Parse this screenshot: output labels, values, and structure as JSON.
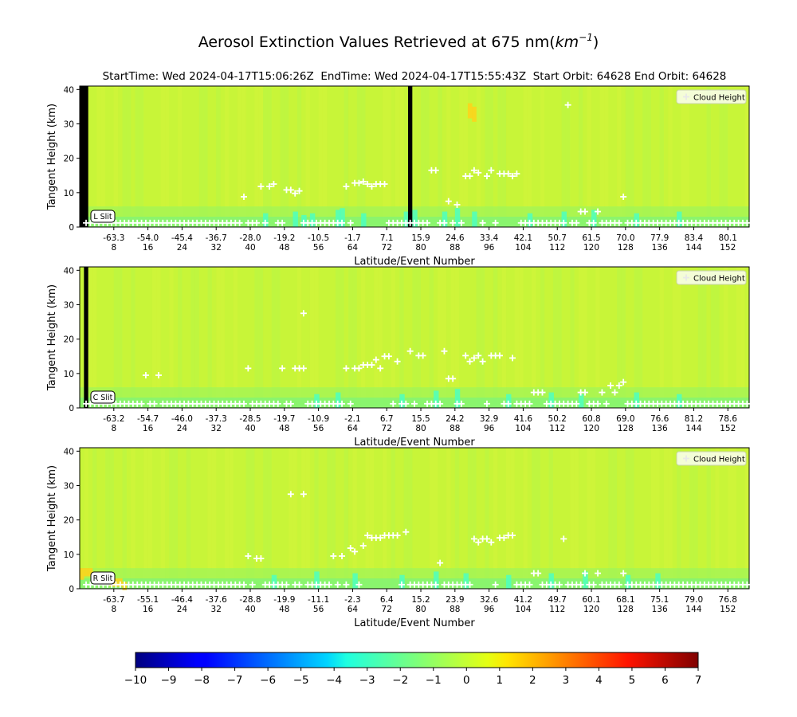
{
  "title_main": "Aerosol Extinction Values Retrieved at 675 nm(",
  "title_unit": "km",
  "title_exp": "−1",
  "title_close": ")",
  "subtitle": "StartTime: Wed 2024-04-17T15:06:26Z  EndTime: Wed 2024-04-17T15:55:43Z  Start Orbit: 64628 End Orbit: 64628",
  "colors": {
    "background_field": "#c8f538",
    "cloud_marker": "#ffffff",
    "data_gap": "#000000",
    "low_alt_cyan": "#4dffc0"
  },
  "chart_data": [
    {
      "type": "heatmap",
      "slit_label": "L Slit",
      "xlabel": "Latitude/Event Number",
      "ylabel": "Tangent Height (km)",
      "ylim": [
        0,
        41
      ],
      "yticks": [
        0,
        10,
        20,
        30,
        40
      ],
      "lat_ticks": [
        "-63.3",
        "-54.0",
        "-45.4",
        "-36.7",
        "-28.0",
        "-19.2",
        "-10.5",
        "-1.7",
        "7.1",
        "15.9",
        "24.6",
        "33.4",
        "42.1",
        "50.7",
        "61.5",
        "70.0",
        "77.9",
        "83.4",
        "80.1"
      ],
      "event_ticks": [
        "8",
        "16",
        "24",
        "32",
        "40",
        "48",
        "56",
        "64",
        "72",
        "80",
        "88",
        "96",
        "104",
        "112",
        "120",
        "128",
        "136",
        "144",
        "152"
      ],
      "event_range": [
        0,
        157
      ],
      "legend": {
        "label": "Cloud Height",
        "placement": "top-right"
      },
      "gaps": [
        [
          0,
          2
        ],
        [
          77,
          78
        ]
      ],
      "cloud_heights": [
        [
          22,
          1.2
        ],
        [
          38,
          8.8
        ],
        [
          40,
          1.2
        ],
        [
          42,
          11.8
        ],
        [
          44,
          11.8
        ],
        [
          45,
          12.5
        ],
        [
          47,
          1.2
        ],
        [
          48,
          10.8
        ],
        [
          49,
          10.8
        ],
        [
          50,
          9.8
        ],
        [
          51,
          10.5
        ],
        [
          56,
          1.2
        ],
        [
          61,
          1.2
        ],
        [
          62,
          11.8
        ],
        [
          64,
          12.8
        ],
        [
          65,
          12.8
        ],
        [
          66,
          13.2
        ],
        [
          67,
          12.5
        ],
        [
          68,
          11.8
        ],
        [
          69,
          12.5
        ],
        [
          70,
          12.5
        ],
        [
          71,
          12.5
        ],
        [
          80,
          1.2
        ],
        [
          82,
          16.5
        ],
        [
          83,
          16.5
        ],
        [
          84,
          1.2
        ],
        [
          85,
          1.2
        ],
        [
          86,
          7.5
        ],
        [
          88,
          6.5
        ],
        [
          89,
          1.2
        ],
        [
          90,
          14.8
        ],
        [
          91,
          14.8
        ],
        [
          92,
          16.5
        ],
        [
          93,
          15.8
        ],
        [
          94,
          1.2
        ],
        [
          95,
          14.8
        ],
        [
          96,
          16.5
        ],
        [
          98,
          15.5
        ],
        [
          99,
          15.5
        ],
        [
          100,
          15.5
        ],
        [
          101,
          14.8
        ],
        [
          102,
          15.5
        ],
        [
          107,
          1.2
        ],
        [
          114,
          35.5
        ],
        [
          115,
          1.2
        ],
        [
          117,
          4.5
        ],
        [
          118,
          4.5
        ],
        [
          121,
          4.5
        ],
        [
          122,
          1.2
        ],
        [
          127,
          8.8
        ]
      ],
      "cyan_events": [
        [
          43,
          4.0
        ],
        [
          50,
          4.5
        ],
        [
          52,
          3.5
        ],
        [
          54,
          4.0
        ],
        [
          60,
          5.0
        ],
        [
          61,
          5.5
        ],
        [
          66,
          4.0
        ],
        [
          76,
          4.5
        ],
        [
          78,
          5.0
        ],
        [
          85,
          4.5
        ],
        [
          88,
          5.5
        ],
        [
          92,
          4.5
        ],
        [
          105,
          4.0
        ],
        [
          113,
          4.5
        ],
        [
          120,
          5.0
        ],
        [
          130,
          4.0
        ],
        [
          140,
          4.5
        ]
      ],
      "warm_spots": [
        [
          91,
          36,
          33
        ],
        [
          92,
          35,
          32
        ]
      ]
    },
    {
      "type": "heatmap",
      "slit_label": "C Slit",
      "xlabel": "Latitude/Event Number",
      "ylabel": "Tangent Height (km)",
      "ylim": [
        0,
        41
      ],
      "yticks": [
        0,
        10,
        20,
        30,
        40
      ],
      "lat_ticks": [
        "-63.2",
        "-54.7",
        "-46.0",
        "-37.3",
        "-28.5",
        "-19.7",
        "-10.9",
        "-2.1",
        "6.7",
        "15.5",
        "24.2",
        "32.9",
        "41.6",
        "50.2",
        "60.8",
        "69.0",
        "76.6",
        "81.2",
        "78.6"
      ],
      "event_ticks": [
        "8",
        "16",
        "24",
        "32",
        "40",
        "48",
        "56",
        "64",
        "72",
        "80",
        "88",
        "96",
        "104",
        "112",
        "120",
        "128",
        "136",
        "144",
        "152"
      ],
      "event_range": [
        0,
        157
      ],
      "legend": {
        "label": "Cloud Height",
        "placement": "top-right"
      },
      "gaps": [
        [
          1,
          2
        ]
      ],
      "cloud_heights": [
        [
          15,
          9.5
        ],
        [
          18,
          9.5
        ],
        [
          39,
          11.5
        ],
        [
          45,
          1.2
        ],
        [
          46,
          1.2
        ],
        [
          47,
          11.5
        ],
        [
          49,
          1.2
        ],
        [
          50,
          11.5
        ],
        [
          51,
          11.5
        ],
        [
          52,
          11.5
        ],
        [
          52,
          27.5
        ],
        [
          62,
          11.5
        ],
        [
          64,
          11.5
        ],
        [
          65,
          11.5
        ],
        [
          66,
          12.5
        ],
        [
          67,
          12.5
        ],
        [
          68,
          12.5
        ],
        [
          69,
          14.0
        ],
        [
          70,
          11.5
        ],
        [
          71,
          15.0
        ],
        [
          72,
          15.0
        ],
        [
          74,
          13.5
        ],
        [
          77,
          16.5
        ],
        [
          79,
          15.2
        ],
        [
          80,
          15.2
        ],
        [
          85,
          16.5
        ],
        [
          86,
          8.5
        ],
        [
          87,
          8.5
        ],
        [
          90,
          15.2
        ],
        [
          91,
          13.5
        ],
        [
          92,
          14.5
        ],
        [
          93,
          15.2
        ],
        [
          94,
          13.5
        ],
        [
          96,
          15.2
        ],
        [
          97,
          15.2
        ],
        [
          98,
          15.2
        ],
        [
          101,
          14.5
        ],
        [
          106,
          4.5
        ],
        [
          107,
          4.5
        ],
        [
          108,
          4.5
        ],
        [
          117,
          4.5
        ],
        [
          118,
          4.5
        ],
        [
          122,
          4.5
        ],
        [
          124,
          6.5
        ],
        [
          125,
          4.5
        ],
        [
          126,
          6.5
        ],
        [
          127,
          7.5
        ]
      ],
      "cyan_events": [
        [
          55,
          4.0
        ],
        [
          60,
          4.5
        ],
        [
          75,
          4.0
        ],
        [
          83,
          5.0
        ],
        [
          88,
          5.5
        ],
        [
          100,
          4.0
        ],
        [
          110,
          4.5
        ],
        [
          117,
          4.0
        ],
        [
          130,
          4.5
        ],
        [
          140,
          4.0
        ]
      ],
      "warm_spots": []
    },
    {
      "type": "heatmap",
      "slit_label": "R Slit",
      "xlabel": "Latitude/Event Number",
      "ylabel": "Tangent Height (km)",
      "ylim": [
        0,
        41
      ],
      "yticks": [
        0,
        10,
        20,
        30,
        40
      ],
      "lat_ticks": [
        "-63.7",
        "-55.1",
        "-46.4",
        "-37.6",
        "-28.8",
        "-19.9",
        "-11.1",
        "-2.3",
        "6.4",
        "15.2",
        "23.9",
        "32.6",
        "41.2",
        "49.7",
        "60.1",
        "68.1",
        "75.1",
        "79.0",
        "76.8"
      ],
      "event_ticks": [
        "8",
        "16",
        "24",
        "32",
        "40",
        "48",
        "56",
        "64",
        "72",
        "80",
        "88",
        "96",
        "104",
        "112",
        "120",
        "128",
        "136",
        "144",
        "152"
      ],
      "event_range": [
        0,
        157
      ],
      "legend": {
        "label": "Cloud Height",
        "placement": "top-right"
      },
      "gaps": [],
      "cloud_heights": [
        [
          39,
          9.5
        ],
        [
          41,
          8.8
        ],
        [
          42,
          8.8
        ],
        [
          49,
          27.5
        ],
        [
          52,
          27.5
        ],
        [
          59,
          9.5
        ],
        [
          61,
          9.5
        ],
        [
          63,
          11.8
        ],
        [
          64,
          10.8
        ],
        [
          66,
          12.5
        ],
        [
          67,
          15.5
        ],
        [
          68,
          14.8
        ],
        [
          69,
          14.8
        ],
        [
          70,
          14.8
        ],
        [
          71,
          15.5
        ],
        [
          72,
          15.5
        ],
        [
          73,
          15.5
        ],
        [
          74,
          15.5
        ],
        [
          76,
          16.5
        ],
        [
          79,
          1.2
        ],
        [
          84,
          7.5
        ],
        [
          92,
          14.5
        ],
        [
          93,
          13.5
        ],
        [
          94,
          14.5
        ],
        [
          95,
          14.5
        ],
        [
          96,
          13.5
        ],
        [
          98,
          14.8
        ],
        [
          99,
          14.8
        ],
        [
          100,
          15.5
        ],
        [
          101,
          15.5
        ],
        [
          105,
          1.2
        ],
        [
          106,
          4.5
        ],
        [
          107,
          4.5
        ],
        [
          113,
          14.5
        ],
        [
          118,
          4.5
        ],
        [
          121,
          4.5
        ],
        [
          127,
          4.5
        ]
      ],
      "cyan_events": [
        [
          45,
          4.0
        ],
        [
          55,
          5.0
        ],
        [
          64,
          4.5
        ],
        [
          75,
          4.0
        ],
        [
          83,
          5.0
        ],
        [
          90,
          4.5
        ],
        [
          100,
          4.0
        ],
        [
          110,
          4.5
        ],
        [
          118,
          5.0
        ],
        [
          128,
          4.0
        ],
        [
          135,
          4.5
        ]
      ],
      "warm_spots": [
        [
          0,
          6,
          4
        ],
        [
          1,
          6,
          5
        ],
        [
          2,
          6,
          5
        ],
        [
          3,
          5,
          5
        ],
        [
          4,
          5,
          4
        ],
        [
          5,
          4,
          3
        ],
        [
          6,
          4,
          3
        ],
        [
          7,
          3,
          2
        ],
        [
          8,
          3,
          2
        ],
        [
          9,
          3,
          2
        ],
        [
          10,
          2,
          1
        ]
      ]
    }
  ],
  "colorbar": {
    "min": -10,
    "max": 7,
    "ticks": [
      "−10",
      "−9",
      "−8",
      "−7",
      "−6",
      "−5",
      "−4",
      "−3",
      "−2",
      "−1",
      "0",
      "1",
      "2",
      "3",
      "4",
      "5",
      "6",
      "7"
    ],
    "colormap": "jet"
  }
}
